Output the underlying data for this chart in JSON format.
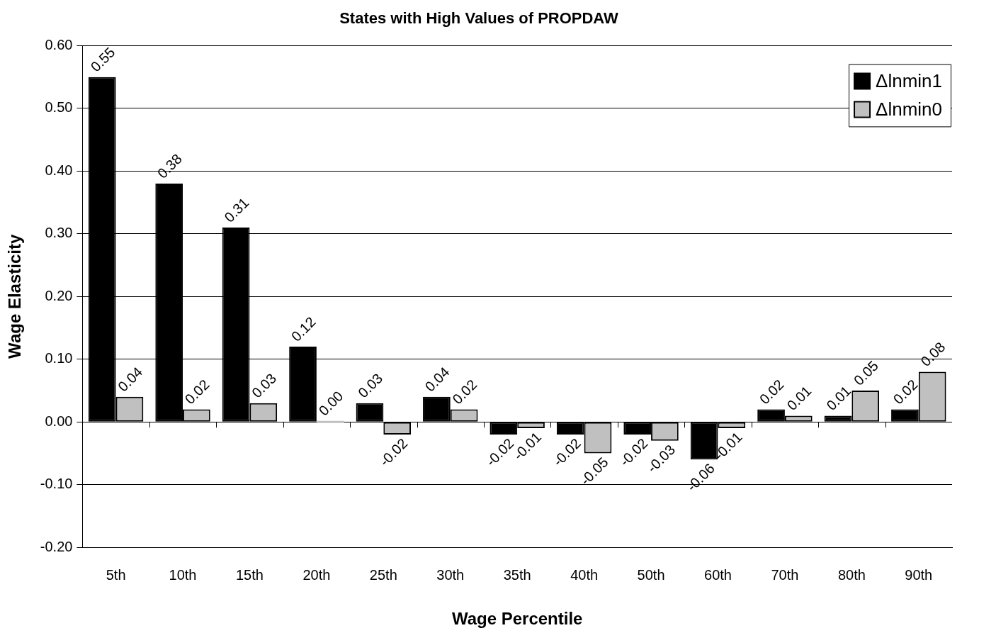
{
  "chart_data": {
    "type": "bar",
    "title": "States with High Values of PROPDAW",
    "xlabel": "Wage Percentile",
    "ylabel": "Wage Elasticity",
    "categories": [
      "5th",
      "10th",
      "15th",
      "20th",
      "25th",
      "30th",
      "35th",
      "40th",
      "50th",
      "60th",
      "70th",
      "80th",
      "90th"
    ],
    "series": [
      {
        "name": "Δlnmin1",
        "color": "#000000",
        "values": [
          0.55,
          0.38,
          0.31,
          0.12,
          0.03,
          0.04,
          -0.02,
          -0.02,
          -0.02,
          -0.06,
          0.02,
          0.01,
          0.02
        ],
        "value_labels": [
          "0.55",
          "0.38",
          "0.31",
          "0.12",
          "0.03",
          "0.04",
          "-0.02",
          "-0.02",
          "-0.02",
          "-0.06",
          "0.02",
          "0.01",
          "0.02"
        ]
      },
      {
        "name": "Δlnmin0",
        "color": "#c0c0c0",
        "values": [
          0.04,
          0.02,
          0.03,
          0.0,
          -0.02,
          0.02,
          -0.01,
          -0.05,
          -0.03,
          -0.01,
          0.01,
          0.05,
          0.08
        ],
        "value_labels": [
          "0.04",
          "0.02",
          "0.03",
          "0.00",
          "-0.02",
          "0.02",
          "-0.01",
          "-0.05",
          "-0.03",
          "-0.01",
          "0.01",
          "0.05",
          "0.08"
        ]
      }
    ],
    "ylim": [
      -0.2,
      0.6
    ],
    "yticks": [
      {
        "value": -0.2,
        "label": "-0.20"
      },
      {
        "value": -0.1,
        "label": "-0.10"
      },
      {
        "value": 0,
        "label": "0.00"
      },
      {
        "value": 0.1,
        "label": "0.10"
      },
      {
        "value": 0.2,
        "label": "0.20"
      },
      {
        "value": 0.3,
        "label": "0.30"
      },
      {
        "value": 0.4,
        "label": "0.40"
      },
      {
        "value": 0.5,
        "label": "0.50"
      },
      {
        "value": 0.6,
        "label": "0.60"
      }
    ],
    "grid": "y",
    "legend": "top right"
  }
}
